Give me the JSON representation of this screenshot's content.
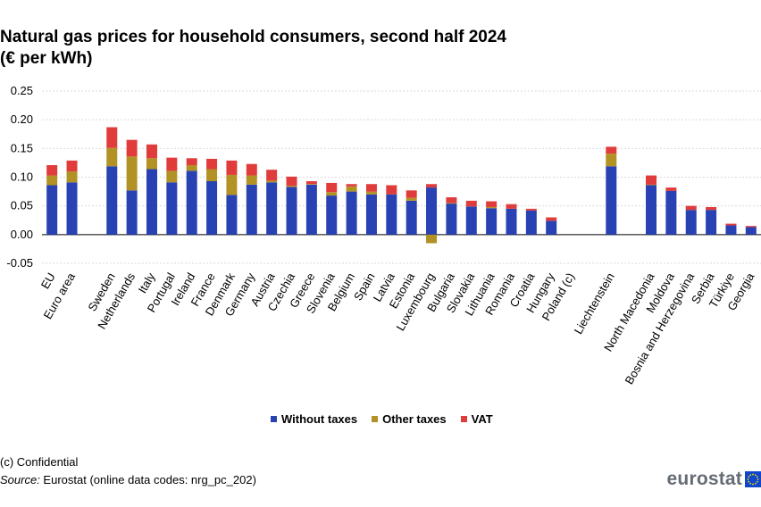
{
  "title_line1": "Natural gas prices for household consumers, second half 2024",
  "title_line2": "(€ per kWh)",
  "footnote": "(c) Confidential",
  "source_label": "Source:",
  "source_text": " Eurostat (online data codes: nrg_pc_202)",
  "logo_text": "eurostat",
  "colors": {
    "without_taxes": "#2942b3",
    "other_taxes": "#b29224",
    "vat": "#e03c3c",
    "grid": "#d9d9d9",
    "flag": "#0e47cb",
    "star": "#ffde00"
  },
  "chart_data": {
    "type": "bar",
    "stacked": true,
    "ylim": [
      -0.05,
      0.25
    ],
    "yticks": [
      -0.05,
      0.0,
      0.05,
      0.1,
      0.15,
      0.2,
      0.25
    ],
    "ytick_labels": [
      "-0.05",
      "0.00",
      "0.05",
      "0.10",
      "0.15",
      "0.20",
      "0.25"
    ],
    "grid": true,
    "legend_position": "bottom",
    "categories": [
      "EU",
      "Euro area",
      "",
      "Sweden",
      "Netherlands",
      "Italy",
      "Portugal",
      "Ireland",
      "France",
      "Denmark",
      "Germany",
      "Austria",
      "Czechia",
      "Greece",
      "Slovenia",
      "Belgium",
      "Spain",
      "Latvia",
      "Estonia",
      "Luxembourg",
      "Bulgaria",
      "Slovakia",
      "Lithuania",
      "Romania",
      "Croatia",
      "Hungary",
      "Poland (c)",
      "",
      "Liechtenstein",
      "",
      "North Macedonia",
      "Moldova",
      "Bosnia and Herzegovina",
      "Serbia",
      "Türkiye",
      "Georgia"
    ],
    "series": [
      {
        "name": "Without taxes",
        "color_key": "without_taxes",
        "values": [
          0.086,
          0.091,
          null,
          0.119,
          0.077,
          0.114,
          0.091,
          0.111,
          0.093,
          0.069,
          0.087,
          0.091,
          0.083,
          0.087,
          0.068,
          0.075,
          0.07,
          0.07,
          0.059,
          0.082,
          0.054,
          0.049,
          0.046,
          0.045,
          0.042,
          0.024,
          null,
          null,
          0.119,
          null,
          0.086,
          0.076,
          0.043,
          0.043,
          0.016,
          0.013
        ]
      },
      {
        "name": "Other taxes",
        "color_key": "other_taxes",
        "values": [
          0.017,
          0.019,
          null,
          0.032,
          0.059,
          0.019,
          0.02,
          0.01,
          0.021,
          0.035,
          0.016,
          0.003,
          0.002,
          0.001,
          0.006,
          0.009,
          0.005,
          0.0,
          0.005,
          -0.015,
          0.001,
          0.0,
          0.002,
          0.0,
          0.0,
          0.0,
          null,
          null,
          0.022,
          null,
          0.001,
          0.0,
          0.0,
          0.0,
          0.0,
          0.0
        ]
      },
      {
        "name": "VAT",
        "color_key": "vat",
        "values": [
          0.018,
          0.019,
          null,
          0.036,
          0.029,
          0.024,
          0.023,
          0.012,
          0.018,
          0.025,
          0.02,
          0.019,
          0.016,
          0.005,
          0.016,
          0.004,
          0.013,
          0.016,
          0.013,
          0.006,
          0.01,
          0.01,
          0.01,
          0.008,
          0.003,
          0.006,
          null,
          null,
          0.012,
          null,
          0.016,
          0.006,
          0.007,
          0.005,
          0.003,
          0.002
        ]
      }
    ]
  }
}
